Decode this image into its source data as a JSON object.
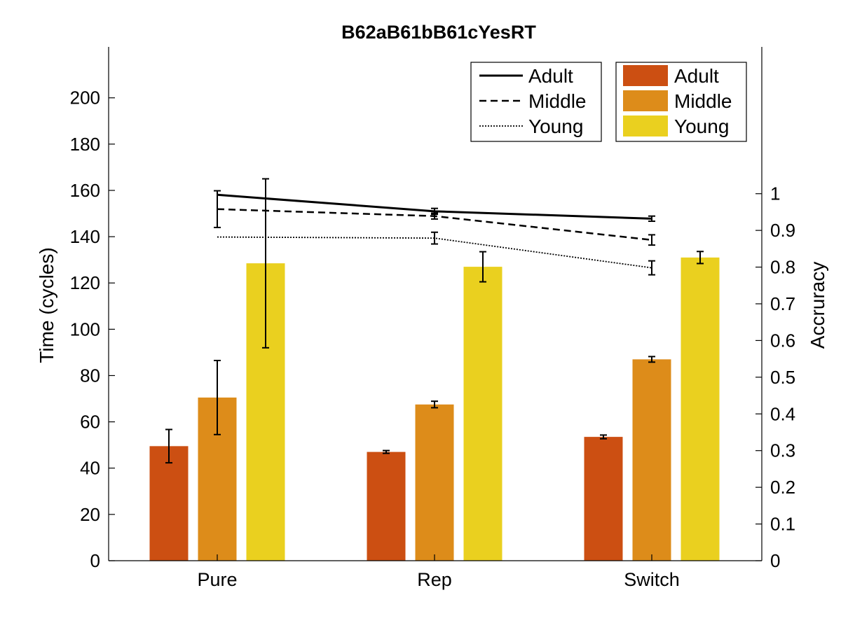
{
  "chart_data": {
    "type": "bar",
    "title": "B62aB61bB61cYesRT",
    "categories": [
      "Pure",
      "Rep",
      "Switch"
    ],
    "ylabel": "Time (cycles)",
    "y2label": "Accruracy",
    "ylim": [
      0,
      222
    ],
    "y2lim": [
      0,
      1.4
    ],
    "yticks": [
      0,
      20,
      40,
      60,
      80,
      100,
      120,
      140,
      160,
      180,
      200
    ],
    "y2ticks": [
      0,
      0.1,
      0.2,
      0.3,
      0.4,
      0.5,
      0.6,
      0.7,
      0.8,
      0.9,
      1
    ],
    "y2tick_labels": [
      "0",
      "0.1",
      "0.2",
      "0.3",
      "0.4",
      "0.5",
      "0.6",
      "0.7",
      "0.8",
      "0.9",
      "1"
    ],
    "grid": false,
    "bar_series": [
      {
        "name": "Adult",
        "color": "#cc4f12",
        "values": [
          49.5,
          47,
          53.5
        ],
        "errors": [
          7.2,
          0.6,
          0.8
        ]
      },
      {
        "name": "Middle",
        "color": "#dd8c1a",
        "values": [
          70.5,
          67.5,
          87
        ],
        "errors": [
          16,
          1.4,
          1.2
        ]
      },
      {
        "name": "Young",
        "color": "#ead01f",
        "values": [
          128.5,
          127,
          131
        ],
        "errors": [
          36.5,
          6.5,
          2.6
        ]
      }
    ],
    "line_series": [
      {
        "name": "Adult",
        "style": "solid",
        "values": [
          0.997,
          0.952,
          0.932
        ],
        "errors": [
          null,
          0.008,
          0.007
        ]
      },
      {
        "name": "Middle",
        "style": "dashed",
        "values": [
          0.958,
          0.939,
          0.874
        ],
        "errors": [
          0.05,
          0.008,
          0.014
        ]
      },
      {
        "name": "Young",
        "style": "dotted",
        "values": [
          0.882,
          0.879,
          0.798
        ],
        "errors": [
          null,
          0.016,
          0.019
        ]
      }
    ],
    "legends": [
      "top-right (lines)",
      "top-right (bars)"
    ]
  }
}
